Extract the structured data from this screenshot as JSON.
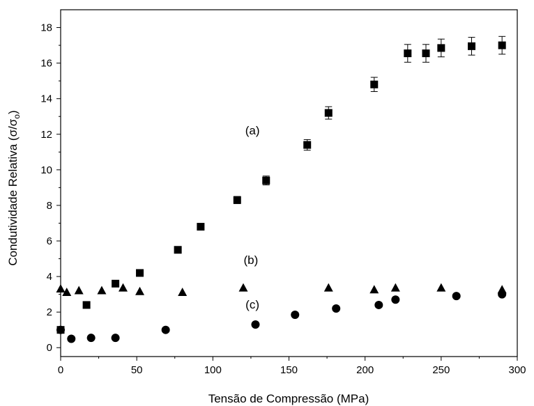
{
  "chart_data": {
    "type": "scatter",
    "xlabel": "Tensão de Compressão (MPa)",
    "ylabel_main": "Condutividade Relativa (σ/σ",
    "ylabel_sub": "o",
    "ylabel_close": ")",
    "xlim": [
      0,
      300
    ],
    "ylim": [
      -0.5,
      19
    ],
    "xticks": [
      0,
      50,
      100,
      150,
      200,
      250,
      300
    ],
    "yticks": [
      0,
      2,
      4,
      6,
      8,
      10,
      12,
      14,
      16,
      18
    ],
    "grid": false,
    "legend": "none",
    "annotations": [
      {
        "text": "(a)",
        "x": 126,
        "y": 12.0
      },
      {
        "text": "(b)",
        "x": 125,
        "y": 4.7
      },
      {
        "text": "(c)",
        "x": 126,
        "y": 2.2
      }
    ],
    "series": [
      {
        "label": "(a)",
        "marker": "square",
        "color": "#000000",
        "points": [
          {
            "x": 0,
            "y": 1.0
          },
          {
            "x": 17,
            "y": 2.4
          },
          {
            "x": 36,
            "y": 3.6
          },
          {
            "x": 52,
            "y": 4.2
          },
          {
            "x": 77,
            "y": 5.5
          },
          {
            "x": 92,
            "y": 6.8
          },
          {
            "x": 116,
            "y": 8.3,
            "err": 0.2
          },
          {
            "x": 135,
            "y": 9.4,
            "err": 0.25
          },
          {
            "x": 162,
            "y": 11.4,
            "err": 0.3
          },
          {
            "x": 176,
            "y": 13.2,
            "err": 0.35
          },
          {
            "x": 206,
            "y": 14.8,
            "err": 0.4
          },
          {
            "x": 228,
            "y": 16.55,
            "err": 0.5
          },
          {
            "x": 240,
            "y": 16.55,
            "err": 0.5
          },
          {
            "x": 250,
            "y": 16.85,
            "err": 0.5
          },
          {
            "x": 270,
            "y": 16.95,
            "err": 0.5
          },
          {
            "x": 290,
            "y": 17.0,
            "err": 0.5
          }
        ]
      },
      {
        "label": "(b)",
        "marker": "triangle",
        "color": "#000000",
        "points": [
          {
            "x": 0,
            "y": 3.3
          },
          {
            "x": 4,
            "y": 3.1
          },
          {
            "x": 12,
            "y": 3.2
          },
          {
            "x": 27,
            "y": 3.2
          },
          {
            "x": 41,
            "y": 3.35
          },
          {
            "x": 52,
            "y": 3.15
          },
          {
            "x": 80,
            "y": 3.1
          },
          {
            "x": 120,
            "y": 3.35
          },
          {
            "x": 176,
            "y": 3.35
          },
          {
            "x": 206,
            "y": 3.25
          },
          {
            "x": 220,
            "y": 3.35
          },
          {
            "x": 250,
            "y": 3.35
          },
          {
            "x": 290,
            "y": 3.25
          }
        ]
      },
      {
        "label": "(c)",
        "marker": "circle",
        "color": "#000000",
        "points": [
          {
            "x": 0,
            "y": 1.0
          },
          {
            "x": 7,
            "y": 0.5
          },
          {
            "x": 20,
            "y": 0.55
          },
          {
            "x": 36,
            "y": 0.55
          },
          {
            "x": 69,
            "y": 1.0
          },
          {
            "x": 128,
            "y": 1.3
          },
          {
            "x": 154,
            "y": 1.85
          },
          {
            "x": 181,
            "y": 2.2
          },
          {
            "x": 209,
            "y": 2.4
          },
          {
            "x": 220,
            "y": 2.7
          },
          {
            "x": 260,
            "y": 2.9
          },
          {
            "x": 290,
            "y": 3.0
          }
        ]
      }
    ]
  }
}
